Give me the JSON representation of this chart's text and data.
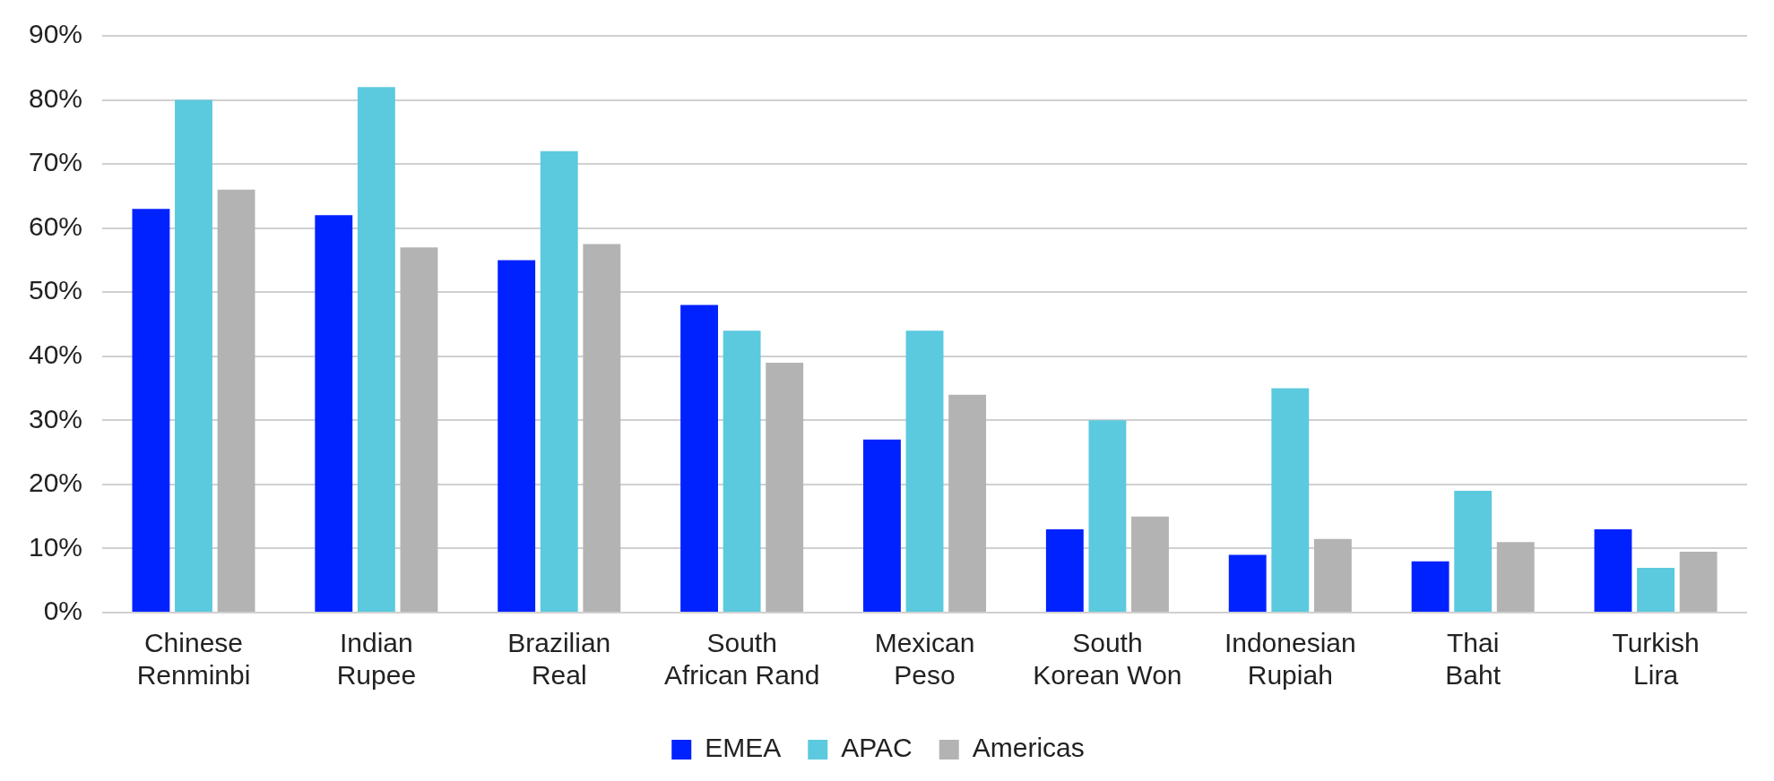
{
  "chart_data": {
    "type": "bar",
    "categories": [
      "Chinese Renminbi",
      "Indian Rupee",
      "Brazilian Real",
      "South African Rand",
      "Mexican Peso",
      "South Korean Won",
      "Indonesian Rupiah",
      "Thai Baht",
      "Turkish Lira"
    ],
    "series": [
      {
        "name": "EMEA",
        "color": "#0022ff",
        "values": [
          63,
          62,
          55,
          48,
          27,
          13,
          9,
          8,
          13
        ]
      },
      {
        "name": "APAC",
        "color": "#5bc9de",
        "values": [
          80,
          82,
          72,
          44,
          44,
          30,
          35,
          19,
          7
        ]
      },
      {
        "name": "Americas",
        "color": "#b3b3b3",
        "values": [
          66,
          57,
          57.5,
          39,
          34,
          15,
          11.5,
          11,
          9.5
        ]
      }
    ],
    "ylim": [
      0,
      90
    ],
    "yticks": [
      {
        "value": 0,
        "label": "0%"
      },
      {
        "value": 10,
        "label": "10%"
      },
      {
        "value": 20,
        "label": "20%"
      },
      {
        "value": 30,
        "label": "30%"
      },
      {
        "value": 40,
        "label": "40%"
      },
      {
        "value": 50,
        "label": "50%"
      },
      {
        "value": 60,
        "label": "60%"
      },
      {
        "value": 70,
        "label": "70%"
      },
      {
        "value": 80,
        "label": "80%"
      },
      {
        "value": 90,
        "label": "90%"
      }
    ],
    "grid": "y",
    "legend": "bottom"
  }
}
